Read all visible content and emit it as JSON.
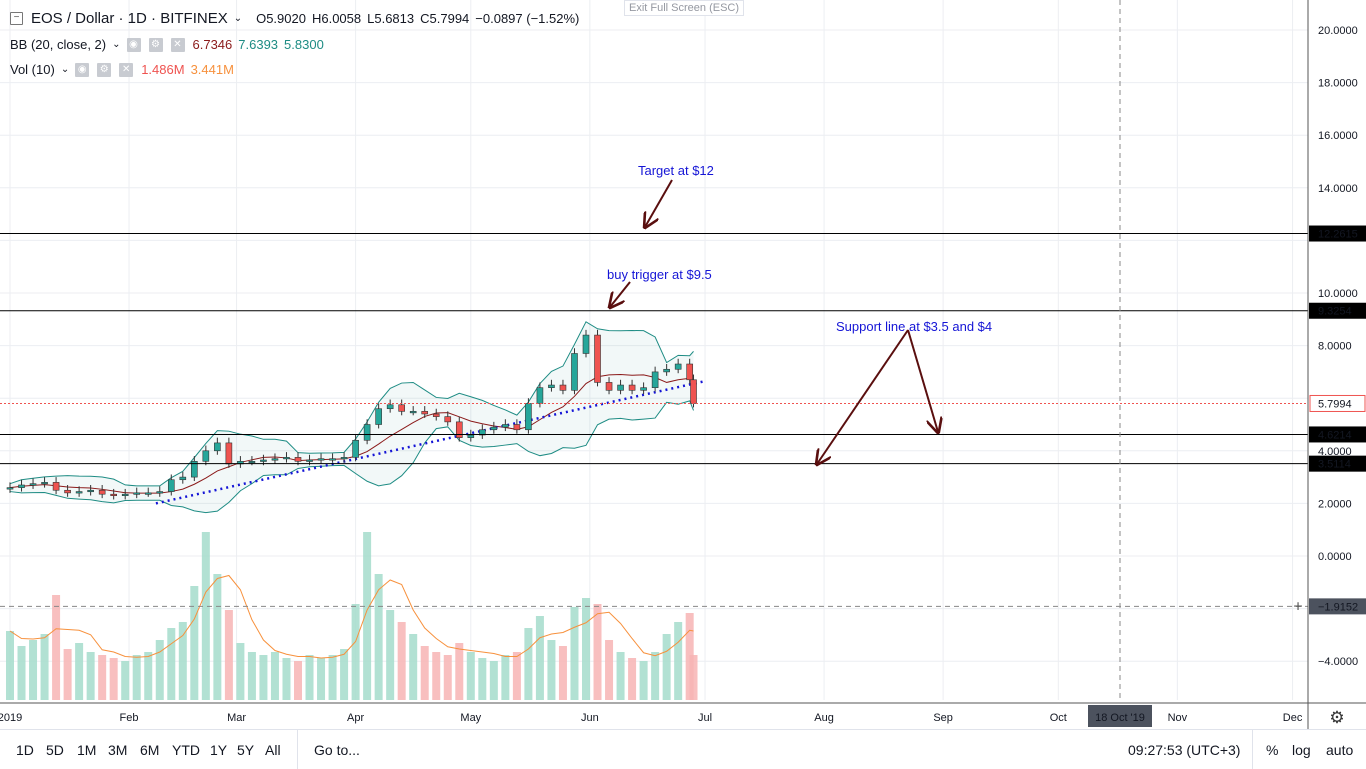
{
  "header": {
    "symbol": "EOS / Dollar · 1D · BITFINEX",
    "open": "O5.9020",
    "high": "H6.0058",
    "low": "L5.6813",
    "close": "C5.7994",
    "change": "−0.0897 (−1.52%)",
    "exit_fullscreen": "Exit Full Screen (ESC)"
  },
  "indicators": [
    {
      "name": "BB (20, close, 2)",
      "values": [
        "6.7346",
        "7.6393",
        "5.8300"
      ],
      "colors": [
        "#8b1a1a",
        "#1e8c84",
        "#1e8c84"
      ]
    },
    {
      "name": "Vol (10)",
      "values": [
        "1.486M",
        "3.441M"
      ],
      "colors": [
        "#ef5350",
        "#f7913d"
      ]
    }
  ],
  "chart_data": {
    "type": "candlestick",
    "y_ticks": [
      "20.0000",
      "18.0000",
      "16.0000",
      "14.0000",
      "10.0000",
      "8.0000",
      "4.0000",
      "2.0000",
      "0.0000",
      "−4.0000"
    ],
    "x_ticks": [
      "2019",
      "Feb",
      "Mar",
      "Apr",
      "May",
      "Jun",
      "Jul",
      "Aug",
      "Sep",
      "Oct",
      "Nov",
      "Dec"
    ],
    "ylim": [
      -5,
      21
    ],
    "candles": [
      [
        "2019-01-01",
        2.6
      ],
      [
        "2019-01-04",
        2.7
      ],
      [
        "2019-01-07",
        2.75
      ],
      [
        "2019-01-10",
        2.8
      ],
      [
        "2019-01-13",
        2.5
      ],
      [
        "2019-01-16",
        2.4
      ],
      [
        "2019-01-19",
        2.45
      ],
      [
        "2019-01-22",
        2.5
      ],
      [
        "2019-01-25",
        2.35
      ],
      [
        "2019-01-28",
        2.3
      ],
      [
        "2019-01-31",
        2.35
      ],
      [
        "2019-02-03",
        2.4
      ],
      [
        "2019-02-06",
        2.4
      ],
      [
        "2019-02-09",
        2.45
      ],
      [
        "2019-02-12",
        2.9
      ],
      [
        "2019-02-15",
        3.0
      ],
      [
        "2019-02-18",
        3.6
      ],
      [
        "2019-02-21",
        4.0
      ],
      [
        "2019-02-24",
        4.3
      ],
      [
        "2019-02-27",
        3.5
      ],
      [
        "2019-03-02",
        3.6
      ],
      [
        "2019-03-05",
        3.6
      ],
      [
        "2019-03-08",
        3.65
      ],
      [
        "2019-03-11",
        3.7
      ],
      [
        "2019-03-14",
        3.75
      ],
      [
        "2019-03-17",
        3.6
      ],
      [
        "2019-03-20",
        3.65
      ],
      [
        "2019-03-23",
        3.7
      ],
      [
        "2019-03-26",
        3.7
      ],
      [
        "2019-03-29",
        3.75
      ],
      [
        "2019-04-01",
        4.4
      ],
      [
        "2019-04-04",
        5.0
      ],
      [
        "2019-04-07",
        5.6
      ],
      [
        "2019-04-10",
        5.75
      ],
      [
        "2019-04-13",
        5.5
      ],
      [
        "2019-04-16",
        5.5
      ],
      [
        "2019-04-19",
        5.4
      ],
      [
        "2019-04-22",
        5.3
      ],
      [
        "2019-04-25",
        5.1
      ],
      [
        "2019-04-28",
        4.5
      ],
      [
        "2019-05-01",
        4.6
      ],
      [
        "2019-05-04",
        4.8
      ],
      [
        "2019-05-07",
        4.9
      ],
      [
        "2019-05-10",
        5.0
      ],
      [
        "2019-05-13",
        4.8
      ],
      [
        "2019-05-16",
        5.8
      ],
      [
        "2019-05-19",
        6.4
      ],
      [
        "2019-05-22",
        6.5
      ],
      [
        "2019-05-25",
        6.3
      ],
      [
        "2019-05-28",
        7.7
      ],
      [
        "2019-05-31",
        8.4
      ],
      [
        "2019-06-03",
        6.6
      ],
      [
        "2019-06-06",
        6.3
      ],
      [
        "2019-06-09",
        6.5
      ],
      [
        "2019-06-12",
        6.3
      ],
      [
        "2019-06-15",
        6.4
      ],
      [
        "2019-06-18",
        7.0
      ],
      [
        "2019-06-21",
        7.1
      ],
      [
        "2019-06-24",
        7.3
      ],
      [
        "2019-06-27",
        6.7
      ],
      [
        "2019-06-28",
        5.8
      ]
    ],
    "volume_m": [
      2.3,
      1.8,
      2.0,
      2.2,
      3.5,
      1.7,
      1.9,
      1.6,
      1.5,
      1.4,
      1.3,
      1.5,
      1.6,
      2.0,
      2.4,
      2.6,
      3.8,
      5.6,
      4.2,
      3.0,
      1.9,
      1.6,
      1.5,
      1.6,
      1.4,
      1.3,
      1.5,
      1.4,
      1.5,
      1.7,
      3.2,
      5.6,
      4.2,
      3.0,
      2.6,
      2.2,
      1.8,
      1.6,
      1.5,
      1.9,
      1.6,
      1.4,
      1.3,
      1.5,
      1.6,
      2.4,
      2.8,
      2.0,
      1.8,
      3.1,
      3.4,
      3.2,
      2.0,
      1.6,
      1.4,
      1.3,
      1.6,
      2.2,
      2.6,
      2.9,
      1.5
    ],
    "horizontal_levels": [
      {
        "value": 12.2615,
        "label": "12.2615"
      },
      {
        "value": 9.3254,
        "label": "9.3254"
      },
      {
        "value": 4.6214,
        "label": "4.6214"
      },
      {
        "value": 3.5114,
        "label": "3.5114"
      }
    ],
    "last_price": {
      "value": 5.7994,
      "label": "5.7994"
    },
    "crosshair": {
      "price": -1.9152,
      "price_label": "−1.9152",
      "date_label": "18 Oct '19"
    },
    "trendline": {
      "from": [
        "2019-02-08",
        2.0
      ],
      "to": [
        "2019-07-01",
        6.65
      ]
    },
    "annotations": [
      {
        "text": "Target at $12"
      },
      {
        "text": "buy trigger at $9.5"
      },
      {
        "text": "Support line at $3.5 and $4"
      }
    ],
    "colors": {
      "up": "#26a69a",
      "down": "#ef5350",
      "bb_band": "#1e8c84",
      "bb_basis": "#8b1a1a",
      "trend": "#1515d6",
      "arrow": "#5a0f0f",
      "vol_ma": "#f7913d"
    }
  },
  "toolbar": {
    "ranges": [
      "1D",
      "5D",
      "1M",
      "3M",
      "6M",
      "YTD",
      "1Y",
      "5Y",
      "All"
    ],
    "goto": "Go to...",
    "clock": "09:27:53 (UTC+3)",
    "percent": "%",
    "log": "log",
    "auto": "auto"
  }
}
